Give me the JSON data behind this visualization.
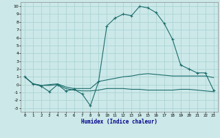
{
  "xlabel": "Humidex (Indice chaleur)",
  "ylabel": "",
  "background_color": "#cce8e8",
  "grid_color": "#aad4d4",
  "line_color": "#1a6b6b",
  "xlabel_color": "#00008b",
  "xlim": [
    -0.5,
    23.5
  ],
  "ylim": [
    -3.5,
    10.5
  ],
  "xticks": [
    0,
    1,
    2,
    3,
    4,
    5,
    6,
    7,
    8,
    9,
    10,
    11,
    12,
    13,
    14,
    15,
    16,
    17,
    18,
    19,
    20,
    21,
    22,
    23
  ],
  "yticks": [
    -3,
    -2,
    -1,
    0,
    1,
    2,
    3,
    4,
    5,
    6,
    7,
    8,
    9,
    10
  ],
  "series": [
    {
      "x": [
        0,
        1,
        2,
        3,
        4,
        5,
        6,
        7,
        8,
        9,
        10,
        11,
        12,
        13,
        14,
        15,
        16,
        17,
        18,
        19,
        20,
        21,
        22,
        23
      ],
      "y": [
        1.0,
        0.1,
        -0.1,
        -0.1,
        0.0,
        -0.5,
        -0.7,
        -0.8,
        -0.8,
        -0.7,
        -0.5,
        -0.5,
        -0.5,
        -0.6,
        -0.6,
        -0.7,
        -0.7,
        -0.7,
        -0.7,
        -0.6,
        -0.6,
        -0.7,
        -0.8,
        -0.9
      ],
      "marker": null,
      "linestyle": "-",
      "linewidth": 0.8
    },
    {
      "x": [
        0,
        1,
        2,
        3,
        4,
        5,
        6,
        7,
        8,
        9,
        10,
        11,
        12,
        13,
        14,
        15,
        16,
        17,
        18,
        19,
        20,
        21,
        22,
        23
      ],
      "y": [
        1.0,
        0.1,
        -0.1,
        0.0,
        0.1,
        -0.3,
        -0.5,
        -0.5,
        -0.5,
        0.4,
        0.6,
        0.8,
        1.0,
        1.1,
        1.3,
        1.4,
        1.3,
        1.2,
        1.1,
        1.1,
        1.1,
        1.1,
        1.1,
        0.9
      ],
      "marker": null,
      "linestyle": "-",
      "linewidth": 0.8
    },
    {
      "x": [
        0,
        1,
        2,
        3,
        4,
        5,
        6,
        7,
        8,
        9,
        10,
        11,
        12,
        13,
        14,
        15,
        16,
        17,
        18,
        19,
        20,
        21,
        22,
        23
      ],
      "y": [
        1.0,
        0.1,
        -0.2,
        -0.9,
        0.0,
        -0.8,
        -0.6,
        -1.2,
        -2.7,
        0.4,
        7.5,
        8.5,
        9.0,
        8.8,
        10.0,
        9.8,
        9.2,
        7.8,
        5.8,
        2.5,
        2.0,
        1.5,
        1.5,
        -0.7
      ],
      "marker": "+",
      "linestyle": "-",
      "linewidth": 0.8
    }
  ]
}
